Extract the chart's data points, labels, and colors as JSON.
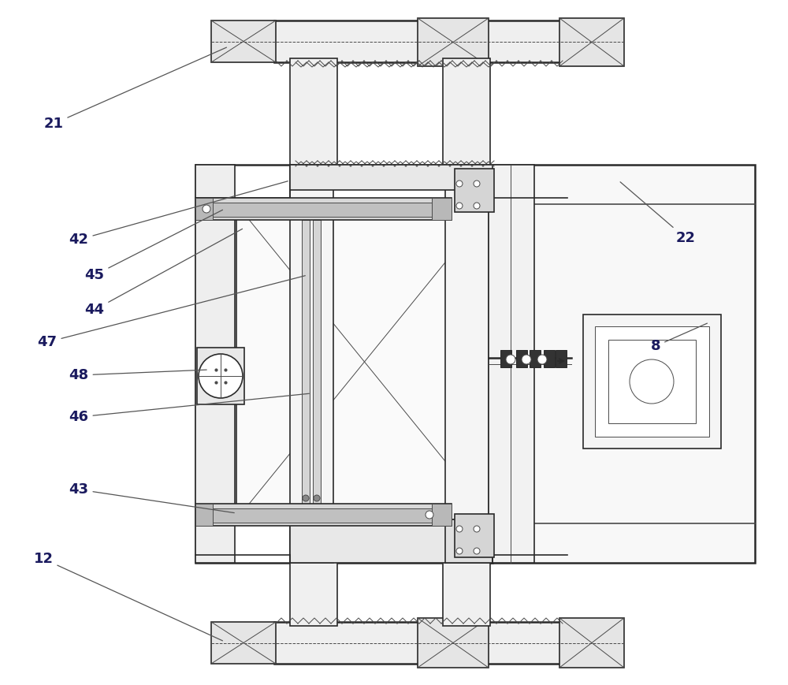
{
  "bg_color": "#ffffff",
  "lc": "#4a4a4a",
  "tc": "#2a2a2a",
  "fc_light": "#f2f2f2",
  "fc_med": "#e0e0e0",
  "fc_dark": "#cccccc",
  "label_color": "#1a1a5e",
  "label_fs": 13
}
